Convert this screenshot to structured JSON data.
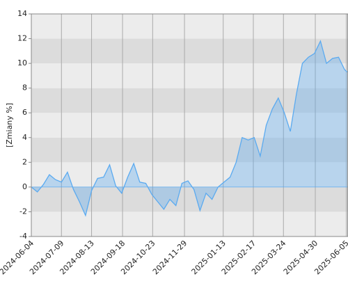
{
  "chart_data": {
    "type": "area",
    "y_label": "[Zmiany %]",
    "x": [
      "2024-06-04",
      "2024-06-11",
      "2024-06-18",
      "2024-06-25",
      "2024-07-02",
      "2024-07-09",
      "2024-07-16",
      "2024-07-23",
      "2024-07-30",
      "2024-08-06",
      "2024-08-13",
      "2024-08-20",
      "2024-08-27",
      "2024-09-03",
      "2024-09-10",
      "2024-09-17",
      "2024-09-24",
      "2024-10-01",
      "2024-10-08",
      "2024-10-15",
      "2024-10-22",
      "2024-10-29",
      "2024-11-05",
      "2024-11-12",
      "2024-11-19",
      "2024-11-26",
      "2024-12-03",
      "2024-12-10",
      "2024-12-17",
      "2024-12-24",
      "2024-12-31",
      "2025-01-07",
      "2025-01-14",
      "2025-01-21",
      "2025-01-28",
      "2025-02-04",
      "2025-02-11",
      "2025-02-18",
      "2025-02-25",
      "2025-03-04",
      "2025-03-11",
      "2025-03-18",
      "2025-03-25",
      "2025-04-01",
      "2025-04-08",
      "2025-04-15",
      "2025-04-22",
      "2025-04-29",
      "2025-05-06",
      "2025-05-13",
      "2025-05-20",
      "2025-05-27",
      "2025-06-03",
      "2025-06-06"
    ],
    "series": [
      {
        "name": "Zmiany",
        "color": "#5aaaf0",
        "values": [
          0,
          -0.4,
          0.2,
          1.0,
          0.6,
          0.4,
          1.2,
          -0.2,
          -1.2,
          -2.3,
          -0.3,
          0.7,
          0.8,
          1.8,
          0.1,
          -0.5,
          0.8,
          1.9,
          0.4,
          0.3,
          -0.6,
          -1.2,
          -1.8,
          -1.0,
          -1.5,
          0.3,
          0.5,
          -0.2,
          -1.9,
          -0.5,
          -1.0,
          0.0,
          0.4,
          0.8,
          2.0,
          4.0,
          3.8,
          4.0,
          2.5,
          5.0,
          6.3,
          7.2,
          6.0,
          4.5,
          7.5,
          10.0,
          10.5,
          10.8,
          11.8,
          10.0,
          10.4,
          10.5,
          9.5,
          9.3
        ]
      }
    ],
    "xlim": [
      "2024-06-04",
      "2025-06-07"
    ],
    "xticks": [
      "2024-06-04",
      "2024-07-09",
      "2024-08-13",
      "2024-09-18",
      "2024-10-23",
      "2024-11-29",
      "2025-01-13",
      "2025-02-17",
      "2025-03-24",
      "2025-04-30",
      "2025-06-05"
    ],
    "ylim": [
      -4,
      14
    ],
    "yticks": [
      -4,
      -2,
      0,
      2,
      4,
      6,
      8,
      10,
      12,
      14
    ],
    "grid": true
  }
}
